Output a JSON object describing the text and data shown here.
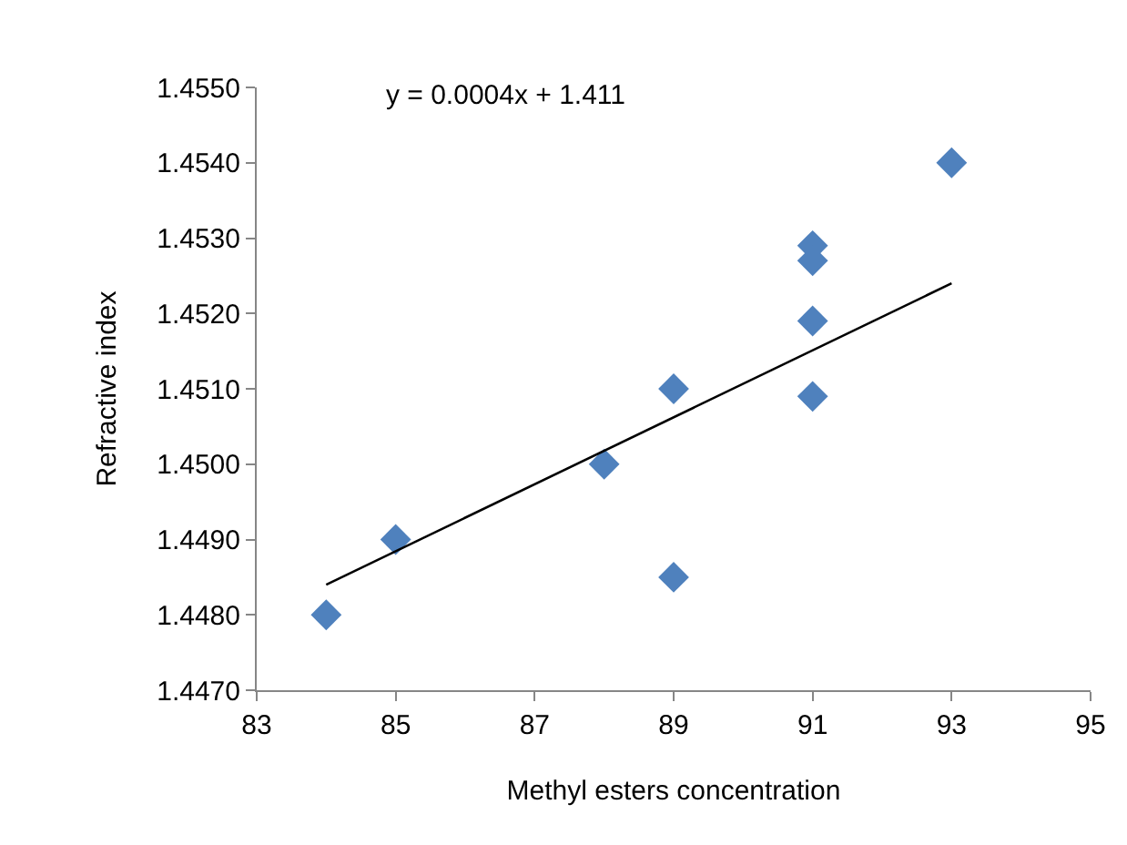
{
  "chart_data": {
    "type": "scatter",
    "xlabel": "Methyl esters concentration",
    "ylabel": "Refractive index",
    "annotations": [
      "y = 0.0004x + 1.411"
    ],
    "marker": "diamond",
    "grid": false,
    "legend": false,
    "xlim": [
      83,
      95
    ],
    "xticks": [
      83,
      85,
      87,
      89,
      91,
      93,
      95
    ],
    "ylim": [
      1.447,
      1.455
    ],
    "yticks": [
      {
        "value": 1.447,
        "label": "1.4470"
      },
      {
        "value": 1.448,
        "label": "1.4480"
      },
      {
        "value": 1.449,
        "label": "1.4490"
      },
      {
        "value": 1.45,
        "label": "1.4500"
      },
      {
        "value": 1.451,
        "label": "1.4510"
      },
      {
        "value": 1.452,
        "label": "1.4520"
      },
      {
        "value": 1.453,
        "label": "1.4530"
      },
      {
        "value": 1.454,
        "label": "1.4540"
      },
      {
        "value": 1.455,
        "label": "1.4550"
      }
    ],
    "series": [
      {
        "type": "scatter",
        "color": "#4f81bd",
        "x": [
          84,
          85,
          88,
          89,
          89,
          91,
          91,
          91,
          91,
          93
        ],
        "values": [
          1.448,
          1.449,
          1.45,
          1.451,
          1.4485,
          1.4529,
          1.4527,
          1.4519,
          1.4509,
          1.454
        ]
      },
      {
        "type": "line",
        "color": "#000000",
        "x": [
          84,
          93
        ],
        "values": [
          1.4484,
          1.4524
        ],
        "marker": "none"
      }
    ]
  }
}
